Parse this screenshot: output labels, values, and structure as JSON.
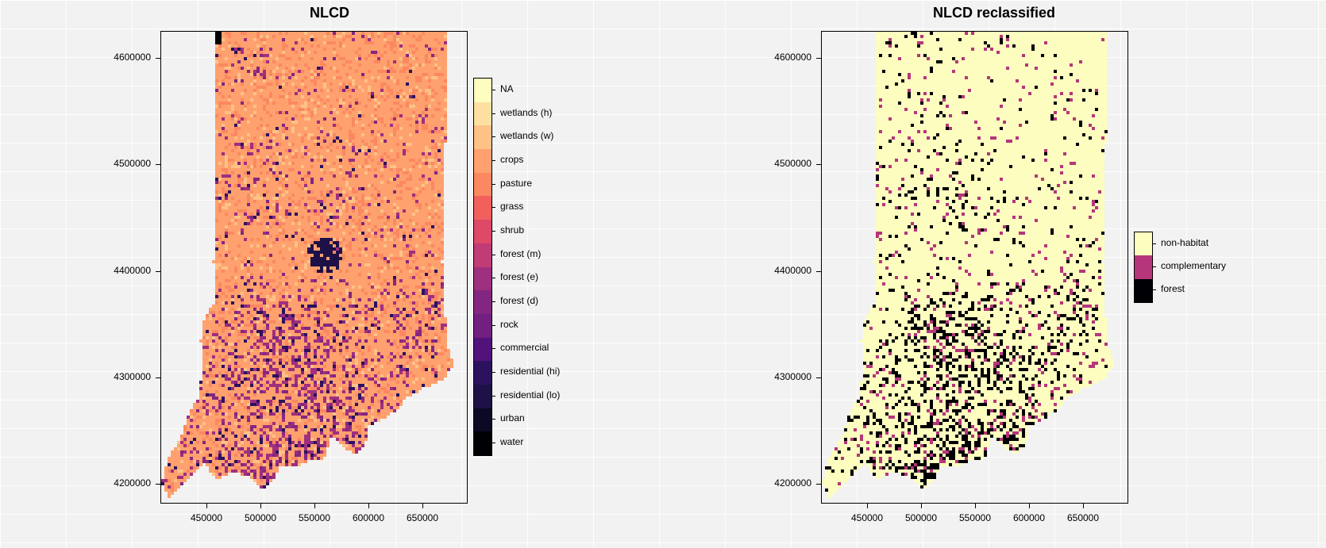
{
  "maps": [
    {
      "title": "NLCD",
      "y_ticks": [
        "4600000",
        "4500000",
        "4400000",
        "4300000",
        "4200000"
      ],
      "x_ticks": [
        "450000",
        "500000",
        "550000",
        "600000",
        "650000"
      ],
      "legend": [
        {
          "label": "NA",
          "color": "#fcfdbf"
        },
        {
          "label": "wetlands (h)",
          "color": "#fde0a1"
        },
        {
          "label": "wetlands (w)",
          "color": "#fec287"
        },
        {
          "label": "crops",
          "color": "#fea16e"
        },
        {
          "label": "pasture",
          "color": "#fb8861"
        },
        {
          "label": "grass",
          "color": "#f1605d"
        },
        {
          "label": "shrub",
          "color": "#de4968"
        },
        {
          "label": "forest (m)",
          "color": "#c13b75"
        },
        {
          "label": "forest (e)",
          "color": "#9f2f7f"
        },
        {
          "label": "forest (d)",
          "color": "#832681"
        },
        {
          "label": "rock",
          "color": "#721f81"
        },
        {
          "label": "commercial",
          "color": "#51127c"
        },
        {
          "label": "residential (hi)",
          "color": "#2c115f"
        },
        {
          "label": "residential (lo)",
          "color": "#1d1147"
        },
        {
          "label": "urban",
          "color": "#0b0924"
        },
        {
          "label": "water",
          "color": "#000004"
        }
      ]
    },
    {
      "title": "NLCD reclassified",
      "y_ticks": [
        "4600000",
        "4500000",
        "4400000",
        "4300000",
        "4200000"
      ],
      "x_ticks": [
        "450000",
        "500000",
        "550000",
        "600000",
        "650000"
      ],
      "legend": [
        {
          "label": "non-habitat",
          "color": "#fcfdbf"
        },
        {
          "label": "complementary",
          "color": "#b5367a"
        },
        {
          "label": "forest",
          "color": "#000004"
        }
      ]
    }
  ]
}
